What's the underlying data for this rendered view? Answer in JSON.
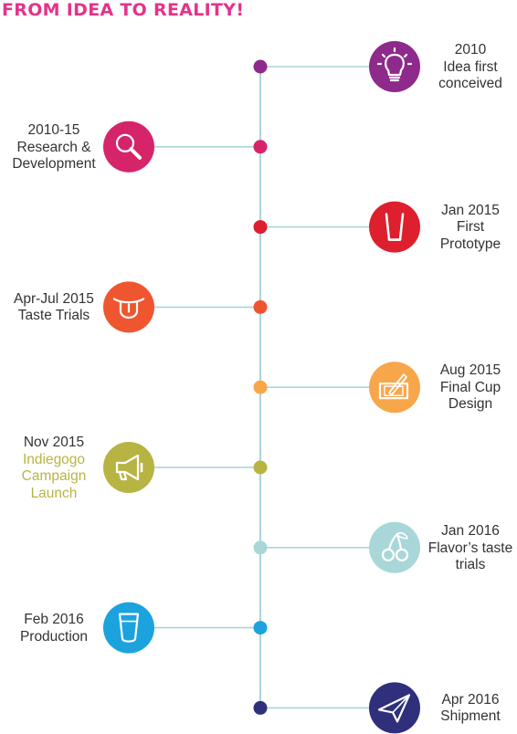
{
  "title": "FROM IDEA TO REALITY!",
  "colors": {
    "line": "#a9d4dc",
    "text": "#333333",
    "title": "#e5338a",
    "highlight": "#b8b444"
  },
  "milestones": [
    {
      "lines": [
        "2010",
        "Idea first",
        "conceived"
      ],
      "icon": "lightbulb-icon",
      "color": "#8e2a8b",
      "side": "right"
    },
    {
      "lines": [
        "2010-15",
        "Research &",
        "Development"
      ],
      "icon": "magnifier-icon",
      "color": "#d6246b",
      "side": "left"
    },
    {
      "lines": [
        "Jan 2015",
        "First",
        "Prototype"
      ],
      "icon": "cup-icon",
      "color": "#dd1f2e",
      "side": "right"
    },
    {
      "lines": [
        "Apr-Jul  2015",
        "Taste Trials"
      ],
      "icon": "tongue-icon",
      "color": "#ef5630",
      "side": "left"
    },
    {
      "lines": [
        "Aug 2015",
        "Final Cup",
        "Design"
      ],
      "icon": "drawing-tablet-icon",
      "color": "#f8a64a",
      "side": "right"
    },
    {
      "lines": [
        "Nov 2015",
        "Indiegogo",
        "Campaign",
        "Launch"
      ],
      "icon": "megaphone-icon",
      "color": "#b8b444",
      "side": "left",
      "highlight_from": 1
    },
    {
      "lines": [
        "Jan 2016",
        "Flavor’s taste",
        "trials"
      ],
      "icon": "cherries-icon",
      "color": "#a9d7d9",
      "side": "right"
    },
    {
      "lines": [
        "Feb 2016",
        "Production"
      ],
      "icon": "glass-icon",
      "color": "#1ca3de",
      "side": "left"
    },
    {
      "lines": [
        "Apr 2016",
        "Shipment"
      ],
      "icon": "paper-plane-icon",
      "color": "#2f2f7c",
      "side": "right"
    }
  ]
}
